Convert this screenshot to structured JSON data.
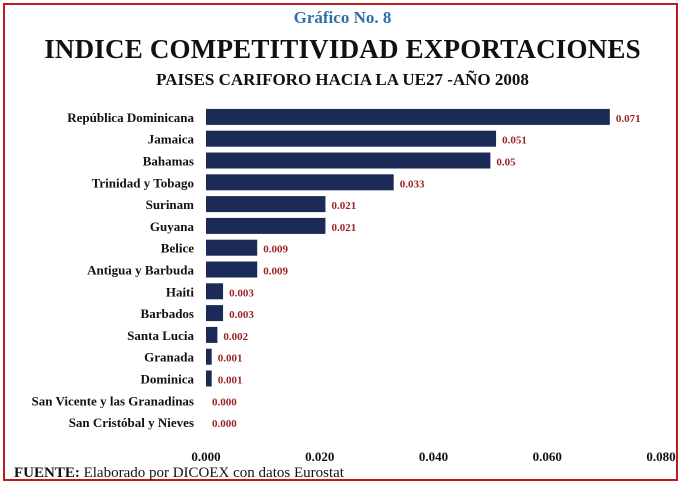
{
  "chart_data": {
    "type": "bar",
    "orientation": "horizontal",
    "kicker": "Gráfico No. 8",
    "title": "INDICE COMPETITIVIDAD EXPORTACIONES",
    "subtitle": "PAISES CARIFORO HACIA LA UE27 -AÑO 2008",
    "categories": [
      "República Dominicana",
      "Jamaica",
      "Bahamas",
      "Trinidad y Tobago",
      "Surinam",
      "Guyana",
      "Belice",
      "Antigua y Barbuda",
      "Haiti",
      "Barbados",
      "Santa Lucia",
      "Granada",
      "Dominica",
      "San Vicente y las Granadinas",
      "San Cristóbal y Nieves"
    ],
    "values": [
      0.071,
      0.051,
      0.05,
      0.033,
      0.021,
      0.021,
      0.009,
      0.009,
      0.003,
      0.003,
      0.002,
      0.001,
      0.001,
      0.0,
      0.0
    ],
    "value_labels": [
      "0.071",
      "0.051",
      "0.05",
      "0.033",
      "0.021",
      "0.021",
      "0.009",
      "0.009",
      "0.003",
      "0.003",
      "0.002",
      "0.001",
      "0.001",
      "0.000",
      "0.000"
    ],
    "xlim": [
      0,
      0.08
    ],
    "xticks": [
      "0.000",
      "0.020",
      "0.040",
      "0.060",
      "0.080"
    ],
    "grid": false,
    "bar_color": "#1b2a57",
    "label_color": "#9b2424"
  },
  "source": {
    "label": "FUENTE:",
    "text": " Elaborado por DICOEX con datos Eurostat"
  }
}
